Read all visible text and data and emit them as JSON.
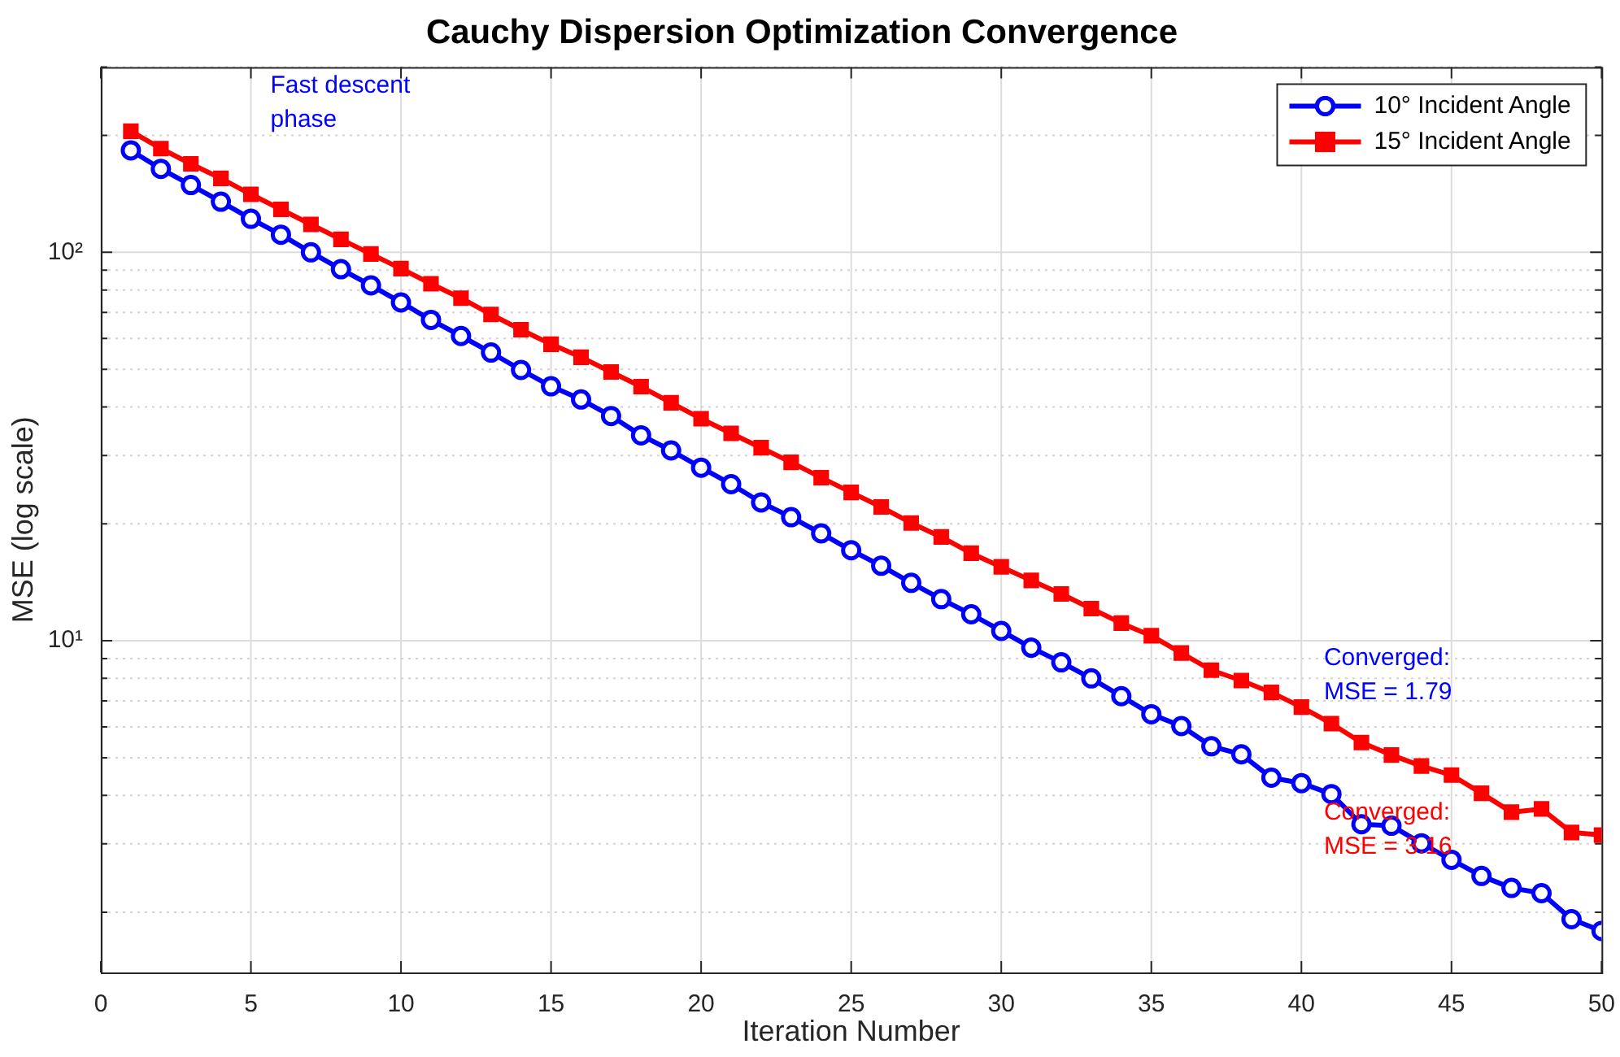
{
  "chart_data": {
    "type": "line",
    "title": "Cauchy Dispersion Optimization Convergence",
    "xlabel": "Iteration Number",
    "ylabel": "MSE (log scale)",
    "x": [
      1,
      2,
      3,
      4,
      5,
      6,
      7,
      8,
      9,
      10,
      11,
      12,
      13,
      14,
      15,
      16,
      17,
      18,
      19,
      20,
      21,
      22,
      23,
      24,
      25,
      26,
      27,
      28,
      29,
      30,
      31,
      32,
      33,
      34,
      35,
      36,
      37,
      38,
      39,
      40,
      41,
      42,
      43,
      44,
      45,
      46,
      47,
      48,
      49,
      50
    ],
    "series": [
      {
        "name": "10° Incident Angle",
        "color": "#0000ff",
        "marker": "circle",
        "values": [
          183,
          164,
          149,
          135,
          122,
          111,
          100,
          90.5,
          82.2,
          74.3,
          67,
          60.9,
          55.2,
          49.8,
          45.2,
          41.8,
          37.9,
          33.8,
          30.9,
          27.9,
          25.3,
          22.7,
          20.8,
          18.9,
          17.1,
          15.6,
          14.1,
          12.8,
          11.7,
          10.6,
          9.6,
          8.8,
          8.0,
          7.2,
          6.47,
          6.03,
          5.35,
          5.1,
          4.44,
          4.3,
          4.03,
          3.37,
          3.34,
          3.01,
          2.73,
          2.48,
          2.31,
          2.24,
          1.92,
          1.79
        ]
      },
      {
        "name": "15° Incident Angle",
        "color": "#ff0000",
        "marker": "square",
        "values": [
          205,
          185,
          169,
          155,
          141,
          129,
          118,
          108,
          99,
          90.8,
          83,
          76.2,
          69.2,
          63.2,
          58,
          53.7,
          49.2,
          45.1,
          41,
          37.3,
          34.2,
          31.4,
          28.8,
          26.3,
          24.1,
          22.1,
          20.1,
          18.5,
          16.8,
          15.5,
          14.3,
          13.2,
          12.1,
          11.1,
          10.3,
          9.3,
          8.4,
          7.9,
          7.36,
          6.75,
          6.12,
          5.47,
          5.08,
          4.76,
          4.51,
          4.05,
          3.62,
          3.69,
          3.21,
          3.16
        ]
      }
    ],
    "log": "y",
    "xlim": [
      0,
      50
    ],
    "xticks": [
      0,
      5,
      10,
      15,
      20,
      25,
      30,
      35,
      40,
      45,
      50
    ],
    "ylim": [
      1.4,
      300
    ],
    "yticks": [
      {
        "value": 2,
        "label": null
      },
      {
        "value": 3,
        "label": null
      },
      {
        "value": 4,
        "label": null
      },
      {
        "value": 5,
        "label": null
      },
      {
        "value": 6,
        "label": null
      },
      {
        "value": 7,
        "label": null
      },
      {
        "value": 8,
        "label": null
      },
      {
        "value": 9,
        "label": null
      },
      {
        "value": 10,
        "label": "10¹"
      },
      {
        "value": 20,
        "label": null
      },
      {
        "value": 30,
        "label": null
      },
      {
        "value": 40,
        "label": null
      },
      {
        "value": 50,
        "label": null
      },
      {
        "value": 60,
        "label": null
      },
      {
        "value": 70,
        "label": null
      },
      {
        "value": 80,
        "label": null
      },
      {
        "value": 90,
        "label": null
      },
      {
        "value": 100,
        "label": "10²"
      },
      {
        "value": 200,
        "label": null
      },
      {
        "value": 300,
        "label": null
      }
    ],
    "grid": true,
    "legend": "top right",
    "line_style": "solid",
    "annotations": [
      "Fast descent\nphase",
      "Converged:\nMSE = 1.79",
      "Converged:\nMSE = 3.16"
    ]
  }
}
